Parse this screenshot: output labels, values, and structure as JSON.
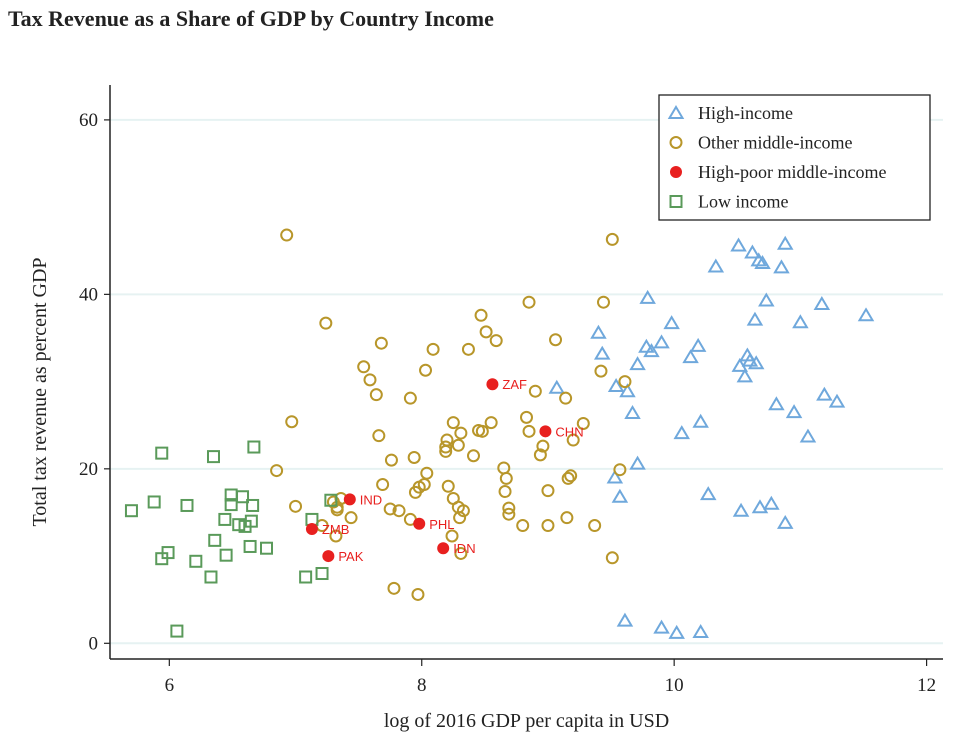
{
  "chart_data": {
    "type": "scatter",
    "title": "Tax Revenue as a Share of GDP by Country Income",
    "xlabel": "log of 2016 GDP per capita in USD",
    "ylabel": "Total tax revenue as percent GDP",
    "xlim": [
      5.53,
      12.13
    ],
    "ylim": [
      -1.8,
      64
    ],
    "xticks": [
      6,
      8,
      10,
      12
    ],
    "yticks": [
      0,
      20,
      40,
      60
    ],
    "grid": "horizontal",
    "legend_position": "top-right",
    "series": [
      {
        "name": "High-income",
        "marker": "triangle-hollow",
        "color": "#6fa8dc",
        "points": [
          [
            10.51,
            45.6
          ],
          [
            10.62,
            44.8
          ],
          [
            10.88,
            45.8
          ],
          [
            10.67,
            43.9
          ],
          [
            10.7,
            43.6
          ],
          [
            10.33,
            43.2
          ],
          [
            10.85,
            43.1
          ],
          [
            9.79,
            39.6
          ],
          [
            10.73,
            39.3
          ],
          [
            11.17,
            38.9
          ],
          [
            11.52,
            37.6
          ],
          [
            10.64,
            37.1
          ],
          [
            11.0,
            36.8
          ],
          [
            9.98,
            36.7
          ],
          [
            9.4,
            35.6
          ],
          [
            9.43,
            33.2
          ],
          [
            9.9,
            34.5
          ],
          [
            9.78,
            34.0
          ],
          [
            9.82,
            33.5
          ],
          [
            10.19,
            34.1
          ],
          [
            10.13,
            32.8
          ],
          [
            9.71,
            32.0
          ],
          [
            10.58,
            33.0
          ],
          [
            10.6,
            32.4
          ],
          [
            10.65,
            32.1
          ],
          [
            10.52,
            31.8
          ],
          [
            10.56,
            30.6
          ],
          [
            9.07,
            29.3
          ],
          [
            9.54,
            29.5
          ],
          [
            9.63,
            28.9
          ],
          [
            9.67,
            26.4
          ],
          [
            11.19,
            28.5
          ],
          [
            11.29,
            27.7
          ],
          [
            10.81,
            27.4
          ],
          [
            10.95,
            26.5
          ],
          [
            11.06,
            23.7
          ],
          [
            10.21,
            25.4
          ],
          [
            10.06,
            24.1
          ],
          [
            9.71,
            20.6
          ],
          [
            9.53,
            19.0
          ],
          [
            9.57,
            16.8
          ],
          [
            10.27,
            17.1
          ],
          [
            10.53,
            15.2
          ],
          [
            10.68,
            15.6
          ],
          [
            10.77,
            16.0
          ],
          [
            10.88,
            13.8
          ],
          [
            9.61,
            2.6
          ],
          [
            9.9,
            1.8
          ],
          [
            10.02,
            1.2
          ],
          [
            10.21,
            1.3
          ]
        ]
      },
      {
        "name": "Other middle-income",
        "marker": "circle-hollow",
        "color": "#b8962a",
        "points": [
          [
            6.93,
            46.8
          ],
          [
            7.24,
            36.7
          ],
          [
            7.68,
            34.4
          ],
          [
            7.54,
            31.7
          ],
          [
            7.59,
            30.2
          ],
          [
            7.64,
            28.5
          ],
          [
            8.09,
            33.7
          ],
          [
            8.03,
            31.3
          ],
          [
            7.91,
            28.1
          ],
          [
            8.47,
            37.6
          ],
          [
            8.51,
            35.7
          ],
          [
            8.59,
            34.7
          ],
          [
            8.37,
            33.7
          ],
          [
            8.85,
            39.1
          ],
          [
            9.06,
            34.8
          ],
          [
            9.44,
            39.1
          ],
          [
            9.51,
            46.3
          ],
          [
            9.42,
            31.2
          ],
          [
            8.9,
            28.9
          ],
          [
            9.14,
            28.1
          ],
          [
            6.97,
            25.4
          ],
          [
            7.66,
            23.8
          ],
          [
            8.25,
            25.3
          ],
          [
            8.31,
            24.1
          ],
          [
            8.2,
            23.3
          ],
          [
            8.19,
            22.5
          ],
          [
            8.19,
            22.0
          ],
          [
            8.29,
            22.7
          ],
          [
            8.45,
            24.4
          ],
          [
            8.48,
            24.3
          ],
          [
            8.55,
            25.3
          ],
          [
            8.83,
            25.9
          ],
          [
            8.85,
            24.3
          ],
          [
            8.96,
            22.6
          ],
          [
            8.94,
            21.6
          ],
          [
            9.28,
            25.2
          ],
          [
            9.2,
            23.3
          ],
          [
            8.41,
            21.5
          ],
          [
            7.94,
            21.3
          ],
          [
            7.76,
            21.0
          ],
          [
            6.85,
            19.8
          ],
          [
            7.69,
            18.2
          ],
          [
            8.04,
            19.5
          ],
          [
            8.02,
            18.2
          ],
          [
            7.98,
            17.9
          ],
          [
            7.95,
            17.3
          ],
          [
            8.21,
            18.0
          ],
          [
            8.25,
            16.6
          ],
          [
            8.29,
            15.6
          ],
          [
            8.33,
            15.2
          ],
          [
            8.3,
            14.4
          ],
          [
            8.24,
            12.3
          ],
          [
            8.31,
            10.3
          ],
          [
            8.65,
            20.1
          ],
          [
            8.67,
            18.9
          ],
          [
            8.66,
            17.4
          ],
          [
            8.69,
            15.5
          ],
          [
            8.69,
            14.8
          ],
          [
            8.8,
            13.5
          ],
          [
            9.0,
            17.5
          ],
          [
            9.0,
            13.5
          ],
          [
            9.15,
            14.4
          ],
          [
            9.16,
            18.9
          ],
          [
            9.18,
            19.2
          ],
          [
            9.37,
            13.5
          ],
          [
            7.0,
            15.7
          ],
          [
            7.33,
            15.6
          ],
          [
            7.3,
            16.2
          ],
          [
            7.36,
            16.6
          ],
          [
            7.33,
            15.3
          ],
          [
            7.44,
            14.4
          ],
          [
            7.21,
            13.5
          ],
          [
            7.32,
            12.3
          ],
          [
            7.75,
            15.4
          ],
          [
            7.82,
            15.2
          ],
          [
            7.91,
            14.2
          ],
          [
            7.78,
            6.3
          ],
          [
            7.97,
            5.6
          ],
          [
            9.61,
            30.0
          ],
          [
            9.57,
            19.9
          ],
          [
            9.51,
            9.8
          ]
        ]
      },
      {
        "name": "High-poor middle-income",
        "marker": "circle-filled",
        "color": "#e8201f",
        "points": [
          [
            7.43,
            16.5,
            "IND"
          ],
          [
            7.13,
            13.1,
            "ZMB"
          ],
          [
            7.26,
            10.0,
            "PAK"
          ],
          [
            7.98,
            13.7,
            "PHL"
          ],
          [
            8.17,
            10.9,
            "IDN"
          ],
          [
            8.56,
            29.7,
            "ZAF"
          ],
          [
            8.98,
            24.3,
            "CHN"
          ]
        ]
      },
      {
        "name": "Low income",
        "marker": "square-hollow",
        "color": "#5a9a5a",
        "points": [
          [
            5.7,
            15.2
          ],
          [
            5.88,
            16.2
          ],
          [
            5.94,
            21.8
          ],
          [
            5.94,
            9.7
          ],
          [
            5.99,
            10.4
          ],
          [
            6.14,
            15.8
          ],
          [
            6.21,
            9.4
          ],
          [
            6.33,
            7.6
          ],
          [
            6.36,
            11.8
          ],
          [
            6.35,
            21.4
          ],
          [
            6.44,
            14.2
          ],
          [
            6.45,
            10.1
          ],
          [
            6.49,
            17.0
          ],
          [
            6.49,
            15.9
          ],
          [
            6.55,
            13.6
          ],
          [
            6.58,
            16.8
          ],
          [
            6.6,
            13.4
          ],
          [
            6.66,
            15.8
          ],
          [
            6.65,
            14.0
          ],
          [
            6.67,
            22.5
          ],
          [
            6.64,
            11.1
          ],
          [
            6.77,
            10.9
          ],
          [
            6.06,
            1.4
          ],
          [
            7.08,
            7.6
          ],
          [
            7.21,
            8.0
          ],
          [
            7.13,
            14.2
          ],
          [
            7.28,
            16.4
          ]
        ]
      }
    ]
  }
}
